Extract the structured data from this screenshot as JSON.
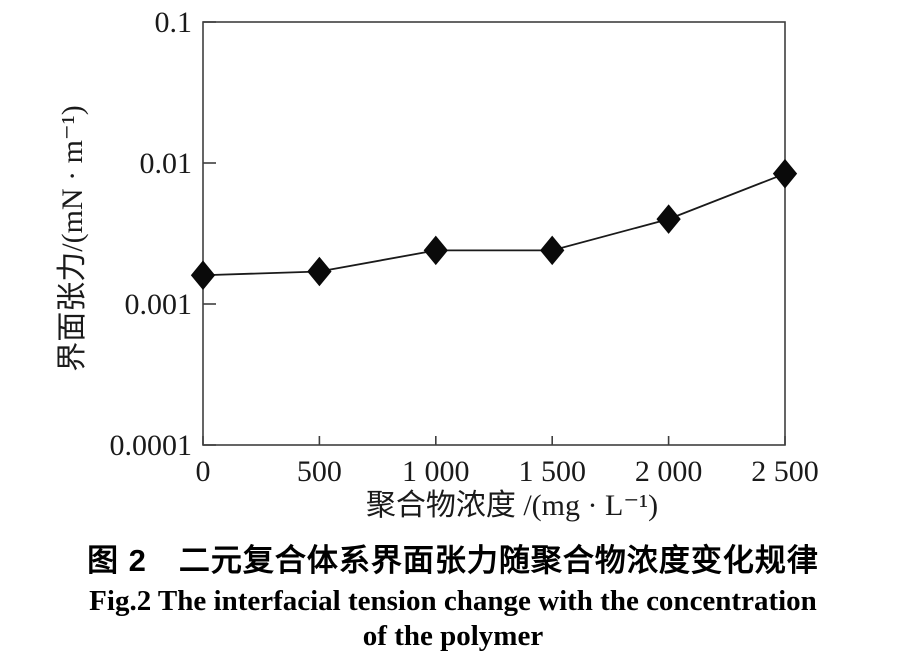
{
  "figure": {
    "caption_zh": "图 2　二元复合体系界面张力随聚合物浓度变化规律",
    "caption_en_line1": "Fig.2 The interfacial tension change with the concentration",
    "caption_en_line2": "of the polymer"
  },
  "chart_data": {
    "type": "line",
    "title": "",
    "xlabel": "聚合物浓度 /(mg · L⁻¹)",
    "ylabel": "界面张力/(mN · m⁻¹)",
    "yscale": "log",
    "xscale": "linear",
    "xlim": [
      0,
      2500
    ],
    "ylim": [
      0.0001,
      0.1
    ],
    "grid": false,
    "legend": "none",
    "marker": "filled-diamond",
    "series": [
      {
        "name": "二元复合体系界面张力",
        "x": [
          0,
          500,
          1000,
          1500,
          2000,
          2500
        ],
        "y": [
          0.0016,
          0.0017,
          0.0024,
          0.0024,
          0.004,
          0.0084
        ]
      }
    ],
    "xtick_values": [
      0,
      500,
      1000,
      1500,
      2000,
      2500
    ],
    "xtick_labels": [
      "0",
      "500",
      "1 000",
      "1 500",
      "2 000",
      "2 500"
    ],
    "ytick_values": [
      0.1,
      0.01,
      0.001,
      0.0001
    ],
    "ytick_labels": [
      "0.1",
      "0.01",
      "0.001",
      "0.0001"
    ],
    "colors": {
      "line": "#1a1a1a",
      "marker": "#0a0a0a",
      "axis": "#3f3f3f",
      "text": "#1a1a1a"
    }
  }
}
